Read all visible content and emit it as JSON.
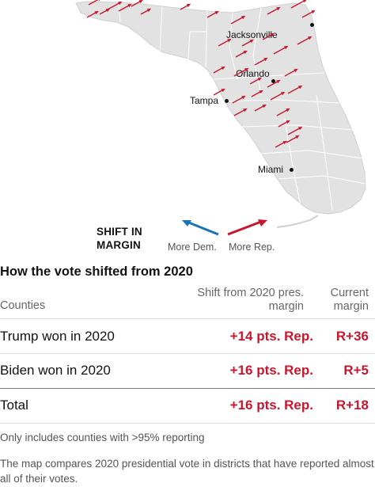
{
  "map": {
    "cities": [
      {
        "name": "Jacksonville"
      },
      {
        "name": "Orlando"
      },
      {
        "name": "Tampa"
      },
      {
        "name": "Miami"
      }
    ],
    "colors": {
      "land": "#e2e2e2",
      "county_border": "#ffffff",
      "rep_arrow": "#c5182e",
      "dem_arrow": "#1a73b5"
    }
  },
  "legend": {
    "title": "SHIFT IN MARGIN",
    "dem_label": "More Dem.",
    "rep_label": "More Rep."
  },
  "table": {
    "title": "How the vote shifted from 2020",
    "headers": {
      "counties": "Counties",
      "shift": "Shift from 2020 pres. margin",
      "current": "Current margin"
    },
    "rows": [
      {
        "name": "Trump won in 2020",
        "shift": "+14 pts. Rep.",
        "margin": "R+36"
      },
      {
        "name": "Biden won in 2020",
        "shift": "+16 pts. Rep.",
        "margin": "R+5"
      }
    ],
    "total": {
      "name": "Total",
      "shift": "+16 pts. Rep.",
      "margin": "R+18"
    }
  },
  "notes": {
    "reporting": "Only includes counties with >95% reporting",
    "caption": "The map compares 2020 presidential vote in districts that have reported almost all of their votes."
  }
}
